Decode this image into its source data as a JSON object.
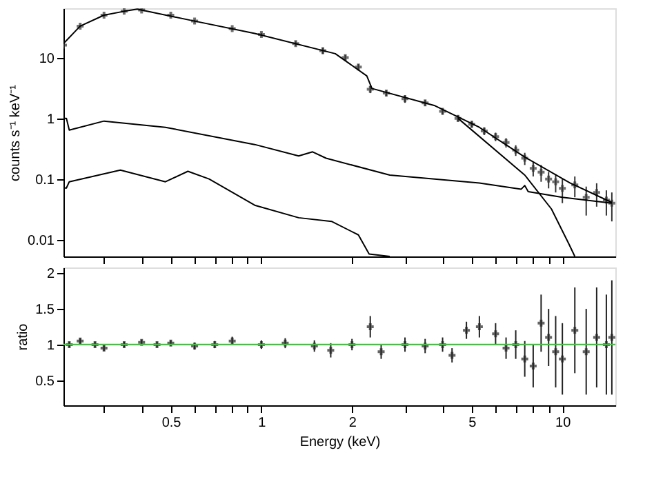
{
  "chart_data": [
    {
      "type": "line",
      "ylabel": "counts s⁻¹ keV⁻¹",
      "log": "xy",
      "tick_labels": "y",
      "xlim": [
        0.22,
        15
      ],
      "xticks": [
        {
          "value": 0.3,
          "label": null
        },
        {
          "value": 0.4,
          "label": null
        },
        {
          "value": 0.5,
          "label": null
        },
        {
          "value": 0.6,
          "label": null
        },
        {
          "value": 0.7,
          "label": null
        },
        {
          "value": 0.8,
          "label": null
        },
        {
          "value": 0.9,
          "label": null
        },
        {
          "value": 1,
          "label": null
        },
        {
          "value": 2,
          "label": null
        },
        {
          "value": 3,
          "label": null
        },
        {
          "value": 4,
          "label": null
        },
        {
          "value": 5,
          "label": null
        },
        {
          "value": 6,
          "label": null
        },
        {
          "value": 7,
          "label": null
        },
        {
          "value": 8,
          "label": null
        },
        {
          "value": 9,
          "label": null
        },
        {
          "value": 10,
          "label": null
        }
      ],
      "ylim": [
        0.0053,
        65
      ],
      "yticks": [
        0.01,
        0.1,
        1,
        10
      ],
      "series": [
        {
          "type": "scatter",
          "marker": "cross",
          "color": "#333333",
          "x": [
            0.22,
            0.25,
            0.3,
            0.35,
            0.4,
            0.5,
            0.6,
            0.8,
            1.0,
            1.3,
            1.6,
            1.9,
            2.1,
            2.3,
            2.6,
            3,
            3.5,
            4,
            4.5,
            5,
            5.5,
            6,
            6.5,
            7,
            7.5,
            8,
            8.5,
            9,
            9.5,
            10,
            11,
            12,
            13,
            14,
            14.6
          ],
          "values": [
            16,
            33,
            50,
            58,
            61,
            50,
            40,
            30,
            24,
            17,
            13,
            10,
            7,
            3.0,
            2.6,
            2.1,
            1.8,
            1.3,
            1.0,
            0.8,
            0.62,
            0.5,
            0.4,
            0.3,
            0.22,
            0.15,
            0.13,
            0.1,
            0.09,
            0.07,
            0.08,
            0.05,
            0.06,
            0.045,
            0.04
          ],
          "errors": [
            1,
            1.5,
            2,
            2,
            2,
            2,
            2,
            1.5,
            1.5,
            1.5,
            1.5,
            1,
            0.8,
            0.4,
            0.3,
            0.3,
            0.2,
            0.15,
            0.12,
            0.1,
            0.09,
            0.08,
            0.07,
            0.06,
            0.05,
            0.04,
            0.04,
            0.03,
            0.03,
            0.03,
            0.03,
            0.025,
            0.025,
            0.02,
            0.02
          ]
        },
        {
          "type": "line",
          "color": "#000000",
          "x": [
            0.22,
            0.25,
            0.3,
            0.35,
            0.387,
            0.585,
            0.95,
            1.76,
            2.24,
            2.33,
            3.75,
            5.3,
            7.5,
            10.6,
            14.6
          ],
          "values": [
            17,
            33,
            50,
            58,
            63,
            41,
            25,
            11.6,
            5.0,
            3.1,
            1.63,
            0.71,
            0.23,
            0.086,
            0.041
          ]
        },
        {
          "type": "line",
          "color": "#000000",
          "x": [
            4.5,
            7.5,
            9.2,
            10.5,
            11
          ],
          "values": [
            1.0,
            0.116,
            0.032,
            0.0086,
            0.0053
          ]
        },
        {
          "type": "line",
          "color": "#000000",
          "x": [
            0.22,
            0.225,
            0.23,
            0.3,
            0.48,
            0.95,
            1.33,
            1.48,
            1.64,
            2.67,
            5.3,
            7.3,
            7.5,
            7.7,
            10,
            14.6
          ],
          "values": [
            1,
            1,
            0.64,
            0.9,
            0.71,
            0.37,
            0.24,
            0.28,
            0.22,
            0.116,
            0.086,
            0.068,
            0.078,
            0.062,
            0.05,
            0.04
          ]
        },
        {
          "type": "line",
          "color": "#000000",
          "x": [
            0.22,
            0.225,
            0.23,
            0.34,
            0.48,
            0.57,
            0.67,
            0.95,
            1.33,
            1.71,
            2.1,
            2.28,
            2.67
          ],
          "values": [
            0.071,
            0.071,
            0.09,
            0.14,
            0.09,
            0.134,
            0.1,
            0.037,
            0.023,
            0.02,
            0.012,
            0.0058,
            0.0053
          ]
        }
      ]
    },
    {
      "type": "scatter",
      "xlabel": "Energy (keV)",
      "ylabel": "ratio",
      "log": "x",
      "marker": "cross",
      "xlim": [
        0.22,
        15
      ],
      "xticks": [
        {
          "value": 0.3,
          "label": null
        },
        {
          "value": 0.4,
          "label": null
        },
        0.5,
        {
          "value": 0.6,
          "label": null
        },
        {
          "value": 0.7,
          "label": null
        },
        {
          "value": 0.8,
          "label": null
        },
        {
          "value": 0.9,
          "label": null
        },
        1,
        2,
        {
          "value": 3,
          "label": null
        },
        {
          "value": 4,
          "label": null
        },
        5,
        {
          "value": 6,
          "label": null
        },
        {
          "value": 7,
          "label": null
        },
        {
          "value": 8,
          "label": null
        },
        {
          "value": 9,
          "label": null
        },
        10
      ],
      "ylim": [
        0.15,
        2.08
      ],
      "yticks": [
        0.5,
        1,
        1.5,
        2
      ],
      "ref_lines": [
        {
          "axis": "y",
          "value": 1,
          "color": "#33cc33"
        }
      ],
      "series": [
        {
          "color": "#222222",
          "x": [
            0.23,
            0.25,
            0.28,
            0.3,
            0.35,
            0.4,
            0.45,
            0.5,
            0.6,
            0.7,
            0.8,
            1.0,
            1.2,
            1.5,
            1.7,
            2.0,
            2.3,
            2.5,
            3,
            3.5,
            4,
            4.3,
            4.8,
            5.3,
            6,
            6.5,
            7,
            7.5,
            8,
            8.5,
            9,
            9.5,
            10,
            11,
            12,
            13,
            14,
            14.6
          ],
          "values": [
            1.0,
            1.05,
            1.0,
            0.95,
            1.0,
            1.03,
            1.0,
            1.02,
            0.98,
            1.0,
            1.05,
            1.0,
            1.02,
            0.98,
            0.92,
            1.0,
            1.25,
            0.9,
            1.0,
            0.98,
            1.0,
            0.85,
            1.2,
            1.25,
            1.15,
            0.95,
            1.0,
            0.8,
            0.7,
            1.3,
            1.1,
            0.9,
            0.8,
            1.2,
            0.9,
            1.1,
            1.0,
            1.1
          ],
          "errors": [
            0.04,
            0.04,
            0.04,
            0.04,
            0.04,
            0.04,
            0.04,
            0.04,
            0.05,
            0.05,
            0.06,
            0.06,
            0.07,
            0.08,
            0.1,
            0.08,
            0.15,
            0.1,
            0.1,
            0.1,
            0.1,
            0.1,
            0.12,
            0.15,
            0.15,
            0.15,
            0.2,
            0.25,
            0.3,
            0.4,
            0.4,
            0.5,
            0.5,
            0.6,
            0.6,
            0.7,
            0.7,
            0.8
          ]
        }
      ]
    }
  ]
}
